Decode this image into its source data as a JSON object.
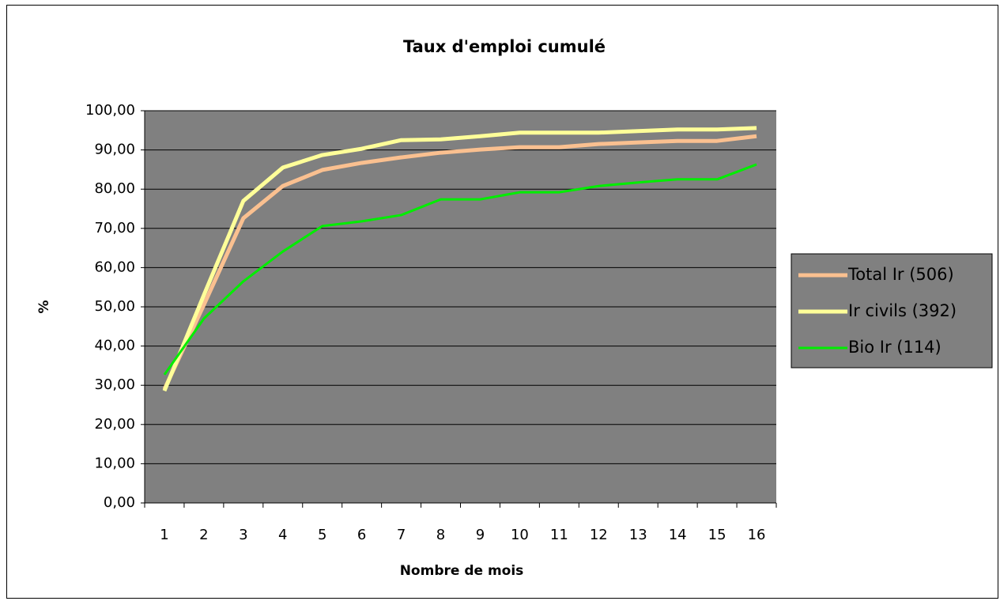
{
  "chart_data": {
    "type": "line",
    "title": "Taux d'emploi cumulé",
    "xlabel": "Nombre de mois",
    "ylabel": "%",
    "categories": [
      "1",
      "2",
      "3",
      "4",
      "5",
      "6",
      "7",
      "8",
      "9",
      "10",
      "11",
      "12",
      "13",
      "14",
      "15",
      "16"
    ],
    "series": [
      {
        "name": "Total Ir (506)",
        "color": "#fac090",
        "values": [
          29.0,
          50.5,
          72.6,
          80.8,
          84.9,
          86.7,
          88.1,
          89.3,
          90.1,
          90.7,
          90.7,
          91.5,
          91.9,
          92.3,
          92.3,
          93.5
        ]
      },
      {
        "name": "Ir civils (392)",
        "color": "#ffff99",
        "values": [
          28.6,
          53.0,
          77.0,
          85.5,
          88.7,
          90.3,
          92.5,
          92.7,
          93.5,
          94.4,
          94.4,
          94.4,
          94.8,
          95.2,
          95.2,
          95.6
        ]
      },
      {
        "name": "Bio Ir (114)",
        "color": "#00ee00",
        "values": [
          32.7,
          47.0,
          56.5,
          64.1,
          70.6,
          71.8,
          73.4,
          77.4,
          77.4,
          79.2,
          79.2,
          80.8,
          81.7,
          82.5,
          82.5,
          86.3
        ]
      }
    ],
    "ylim": [
      0,
      100
    ],
    "yticks": [
      {
        "value": 0,
        "label": "0,00"
      },
      {
        "value": 10,
        "label": "10,00"
      },
      {
        "value": 20,
        "label": "20,00"
      },
      {
        "value": 30,
        "label": "30,00"
      },
      {
        "value": 40,
        "label": "40,00"
      },
      {
        "value": 50,
        "label": "50,00"
      },
      {
        "value": 60,
        "label": "60,00"
      },
      {
        "value": 70,
        "label": "70,00"
      },
      {
        "value": 80,
        "label": "80,00"
      },
      {
        "value": 90,
        "label": "90,00"
      },
      {
        "value": 100,
        "label": "100,00"
      }
    ],
    "grid": true,
    "legend": "right",
    "plot_background": "#808080"
  }
}
